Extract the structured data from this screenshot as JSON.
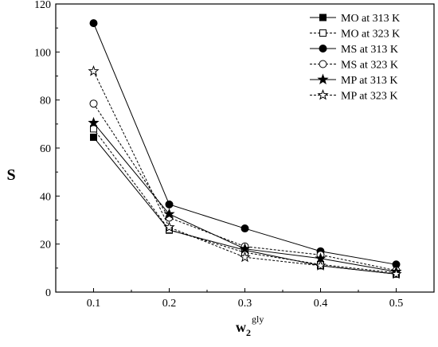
{
  "chart_data": {
    "type": "line",
    "title": "",
    "xlabel": "w",
    "xlabel_sub": "2",
    "xlabel_sup": "gly",
    "ylabel": "S",
    "x": [
      0.1,
      0.2,
      0.3,
      0.4,
      0.5
    ],
    "x_tick_labels": [
      "0.1",
      "0.2",
      "0.3",
      "0.4",
      "0.5"
    ],
    "y_ticks": [
      0,
      20,
      40,
      60,
      80,
      100,
      120
    ],
    "xlim": [
      0.05,
      0.55
    ],
    "ylim": [
      0,
      120
    ],
    "grid": false,
    "legend_position": "top-right",
    "series": [
      {
        "name": "MO at 313 K",
        "values": [
          64.5,
          25.8,
          17.5,
          11.0,
          7.5
        ],
        "marker": "square-filled",
        "line": "solid"
      },
      {
        "name": "MO at 323 K",
        "values": [
          68.0,
          26.0,
          16.5,
          11.5,
          8.0
        ],
        "marker": "square-open",
        "line": "dashed"
      },
      {
        "name": "MS at 313 K",
        "values": [
          112.0,
          36.5,
          26.5,
          17.0,
          11.5
        ],
        "marker": "circle-filled",
        "line": "solid"
      },
      {
        "name": "MS at 323 K",
        "values": [
          78.5,
          31.0,
          19.0,
          15.5,
          9.0
        ],
        "marker": "circle-open",
        "line": "dashed"
      },
      {
        "name": "MP at 313 K",
        "values": [
          70.5,
          32.5,
          18.0,
          14.0,
          8.5
        ],
        "marker": "star-filled",
        "line": "solid"
      },
      {
        "name": "MP at 323 K",
        "values": [
          92.0,
          27.0,
          14.5,
          11.0,
          7.5
        ],
        "marker": "star-open",
        "line": "dashed"
      }
    ]
  }
}
